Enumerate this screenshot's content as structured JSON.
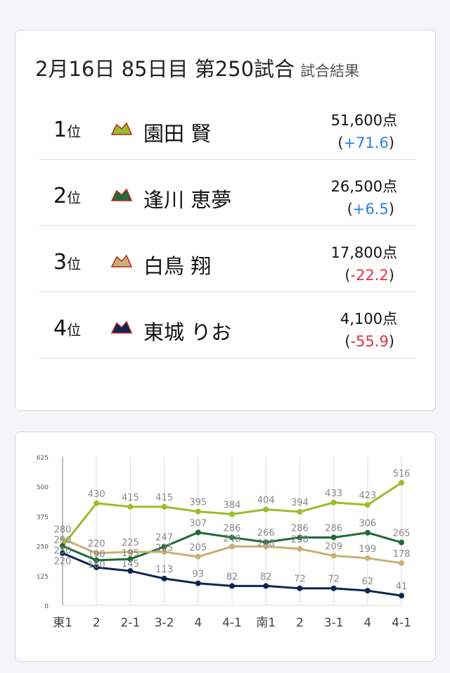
{
  "header": {
    "title": "2月16日 85日目 第250試合",
    "subtitle": "試合結果"
  },
  "results": [
    {
      "rank": "1",
      "rank_suffix": "位",
      "name": "園田 賢",
      "points": "51,600点",
      "diff": "+71.6",
      "sign": "pos",
      "team_icon": "drifters-dragon-logo",
      "color": "#9bbd2a"
    },
    {
      "rank": "2",
      "rank_suffix": "位",
      "name": "逢川 恵夢",
      "points": "26,500点",
      "diff": "+6.5",
      "sign": "pos",
      "team_icon": "jets-shield-logo",
      "color": "#1e6b34"
    },
    {
      "rank": "3",
      "rank_suffix": "位",
      "name": "白鳥 翔",
      "points": "17,800点",
      "diff": "-22.2",
      "sign": "neg",
      "team_icon": "abemas-diamond-logo",
      "color": "#c8b074"
    },
    {
      "rank": "4",
      "rank_suffix": "位",
      "name": "東城 りお",
      "points": "4,100点",
      "diff": "-55.9",
      "sign": "neg",
      "team_icon": "beast-horse-logo",
      "color": "#0d2650"
    }
  ],
  "chart_data": {
    "type": "line",
    "categories": [
      "東1",
      "2",
      "2-1",
      "3-2",
      "4",
      "4-1",
      "南1",
      "2",
      "3-1",
      "4",
      "4-1"
    ],
    "ylim": [
      0,
      625
    ],
    "yticks": [
      0,
      125,
      250,
      375,
      500,
      625
    ],
    "grid": "vertical",
    "series": [
      {
        "color": "#9bbd2a",
        "values": [
          250,
          430,
          415,
          415,
          395,
          384,
          404,
          394,
          433,
          423,
          516
        ]
      },
      {
        "color": "#1e6b34",
        "values": [
          250,
          190,
          195,
          247,
          307,
          286,
          266,
          286,
          286,
          306,
          265
        ]
      },
      {
        "color": "#c8b074",
        "values": [
          280,
          220,
          225,
          225,
          205,
          248,
          248,
          238,
          209,
          199,
          178
        ]
      },
      {
        "color": "#0d2650",
        "values": [
          220,
          160,
          145,
          113,
          93,
          82,
          82,
          72,
          72,
          62,
          41
        ]
      }
    ]
  }
}
